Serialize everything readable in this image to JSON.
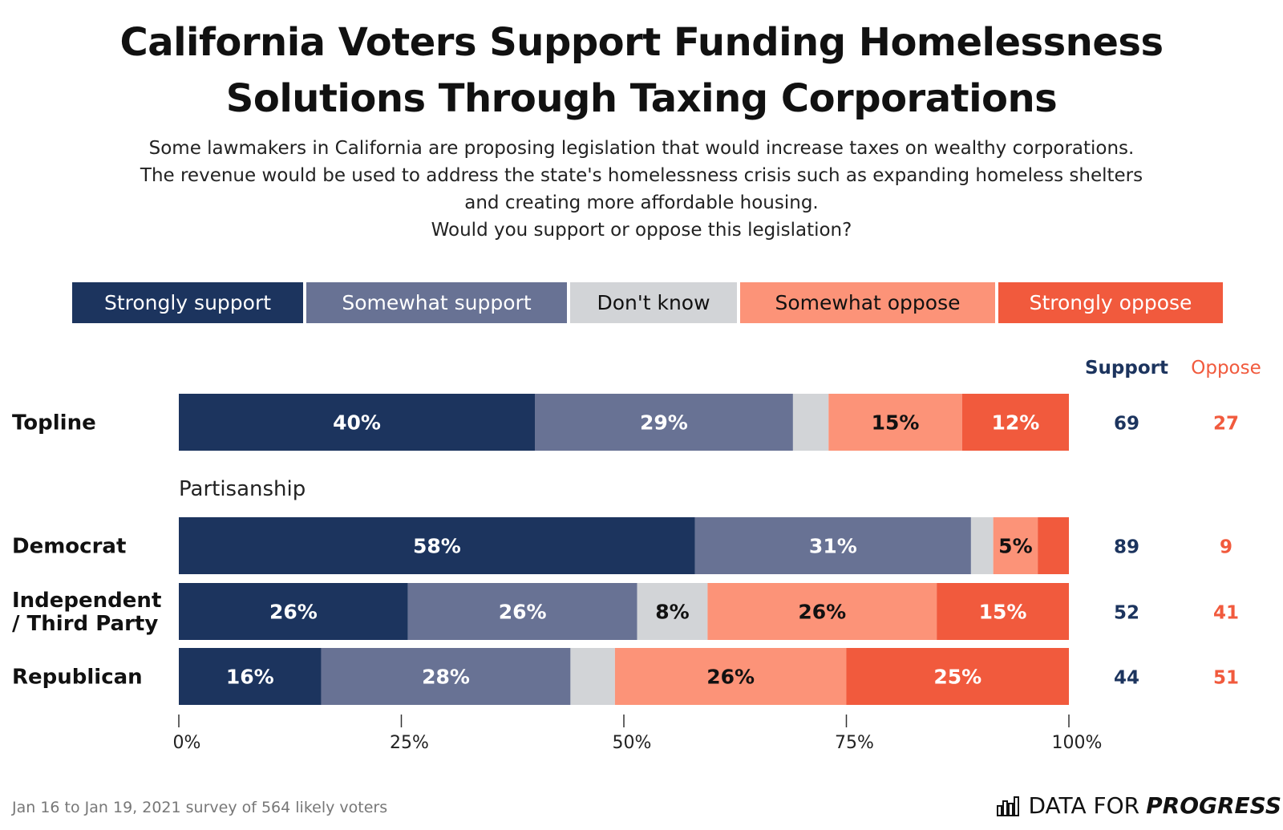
{
  "title_lines": [
    "California Voters Support Funding Homelessness",
    "Solutions Through Taxing Corporations"
  ],
  "subtitle_lines": [
    "Some lawmakers in California are proposing legislation that would increase taxes on wealthy corporations.",
    "The revenue would be used to address the state's homelessness crisis such as expanding homeless shelters",
    "and creating more affordable housing.",
    "Would you support or oppose this legislation?"
  ],
  "colors": {
    "strongly_support": "#1c345e",
    "somewhat_support": "#687294",
    "dont_know": "#d2d4d7",
    "somewhat_oppose": "#fc9378",
    "strongly_oppose": "#f15a3d",
    "support_text": "#1c345e",
    "oppose_text": "#f15a3d"
  },
  "footnote": "Jan 16 to Jan 19, 2021 survey of 564 likely voters",
  "brand": {
    "prefix": "DATA FOR",
    "bold": "PROGRESS",
    "icon": "bar-chart-logo-icon"
  },
  "chart_data": {
    "type": "bar",
    "orientation": "horizontal",
    "stacked": true,
    "legend_placement": "top",
    "legend": [
      "Strongly support",
      "Somewhat support",
      "Don't know",
      "Somewhat oppose",
      "Strongly oppose"
    ],
    "categories": [
      "Topline",
      "Democrat",
      "Independent / Third Party",
      "Republican"
    ],
    "group_label": "Partisanship",
    "series": [
      {
        "name": "Strongly support",
        "values": [
          40,
          58,
          26,
          16
        ],
        "labels": [
          "40%",
          "58%",
          "26%",
          "16%"
        ]
      },
      {
        "name": "Somewhat support",
        "values": [
          29,
          31,
          26,
          28
        ],
        "labels": [
          "29%",
          "31%",
          "26%",
          "28%"
        ]
      },
      {
        "name": "Don't know",
        "values": [
          4,
          2.5,
          8,
          5
        ],
        "labels": [
          "",
          "",
          "8%",
          ""
        ]
      },
      {
        "name": "Somewhat oppose",
        "values": [
          15,
          5,
          26,
          26
        ],
        "labels": [
          "15%",
          "5%",
          "26%",
          "26%"
        ]
      },
      {
        "name": "Strongly oppose",
        "values": [
          12,
          3.5,
          15,
          25
        ],
        "labels": [
          "12%",
          "",
          "15%",
          "25%"
        ]
      }
    ],
    "summary_headers": [
      "Support",
      "Oppose"
    ],
    "support": [
      "69",
      "89",
      "52",
      "44"
    ],
    "oppose": [
      "27",
      "9",
      "41",
      "51"
    ],
    "xlim": [
      0,
      100
    ],
    "xticks": [
      "0%",
      "25%",
      "50%",
      "75%",
      "100%"
    ],
    "grid": false
  }
}
